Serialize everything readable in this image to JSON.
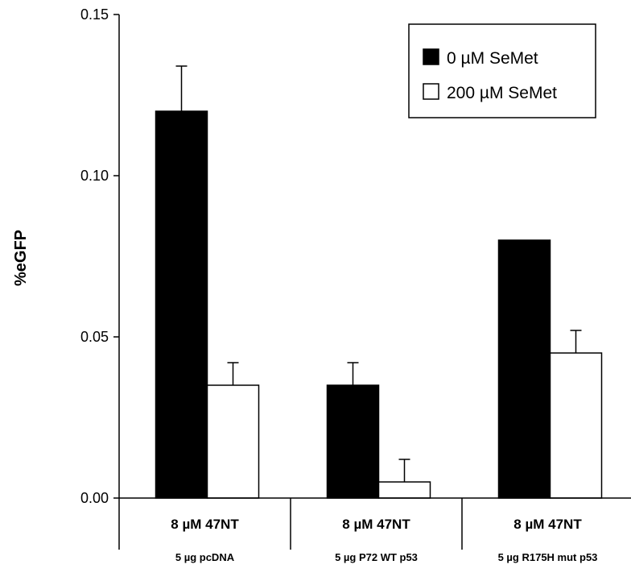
{
  "chart_data": {
    "type": "bar",
    "ylabel": "%eGFP",
    "xlabel": "",
    "ylim": [
      0,
      0.15
    ],
    "yticks": [
      "0.00",
      "0.05",
      "0.10",
      "0.15"
    ],
    "ytick_values": [
      0,
      0.05,
      0.1,
      0.15
    ],
    "categories": [
      {
        "line1": "8 µM 47NT",
        "line2": "5 µg pcDNA"
      },
      {
        "line1": "8 µM 47NT",
        "line2": "5 µg P72 WT p53"
      },
      {
        "line1": "8 µM 47NT",
        "line2": "5 µg R175H mut p53"
      }
    ],
    "series": [
      {
        "name": "0 µM SeMet",
        "color": "#000000",
        "values": [
          0.12,
          0.035,
          0.08
        ],
        "errors": [
          0.014,
          0.007,
          0
        ]
      },
      {
        "name": "200 µM SeMet",
        "color": "#ffffff",
        "values": [
          0.035,
          0.005,
          0.045
        ],
        "errors": [
          0.007,
          0.007,
          0.007
        ]
      }
    ],
    "legend_position": "top-right",
    "grid": false
  }
}
